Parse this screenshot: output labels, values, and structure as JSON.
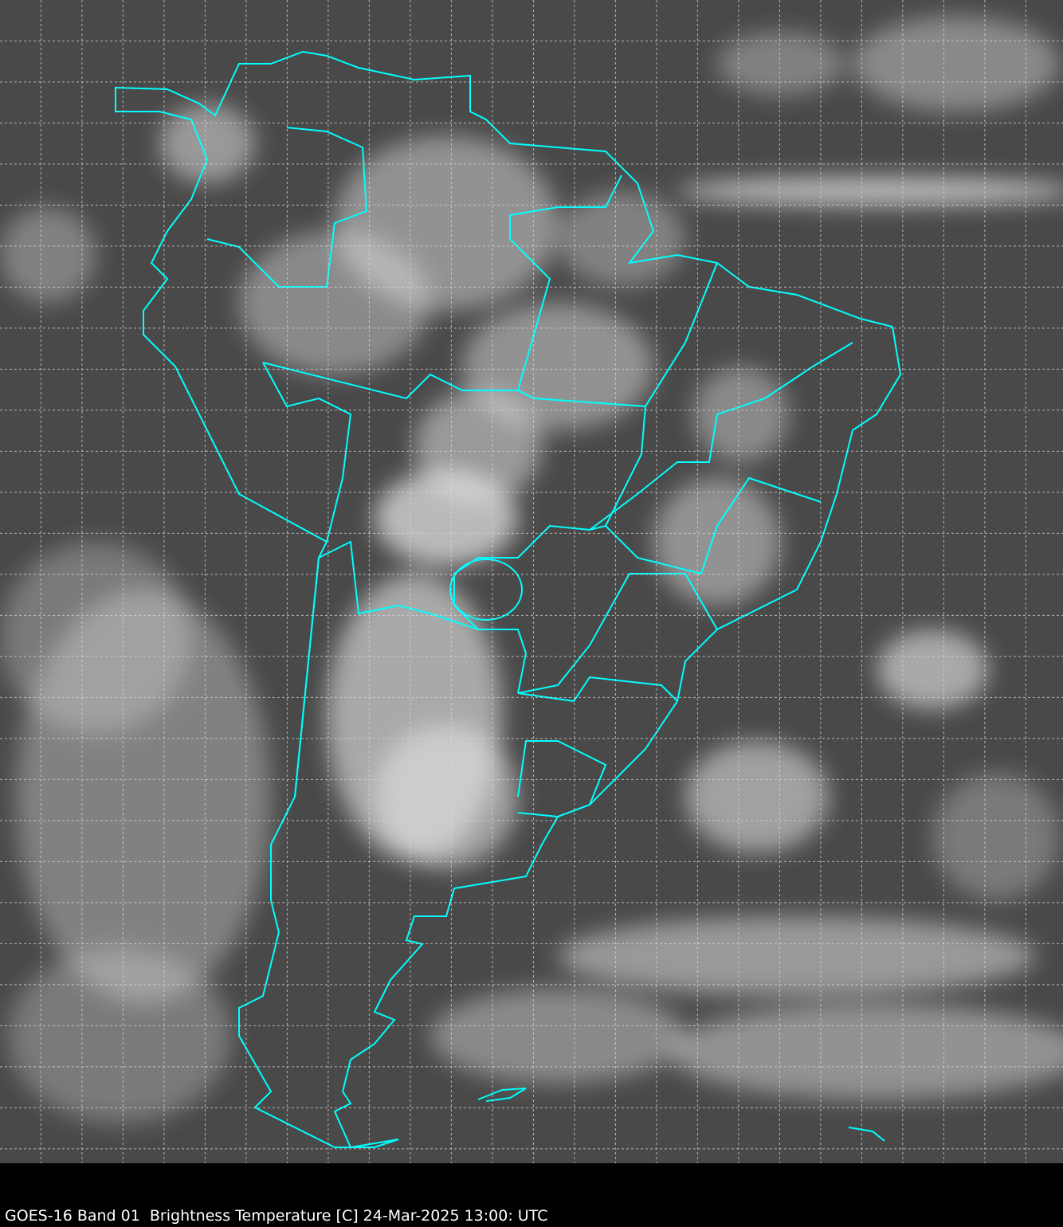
{
  "caption": "GOES-16 Band 01  Brightness Temperature [C] 24-Mar-2025 13:00: UTC",
  "colors": {
    "background": "#4a4a4a",
    "borders": "#00ffff",
    "grid": "#d0d0d0",
    "caption_bar": "#000000"
  }
}
